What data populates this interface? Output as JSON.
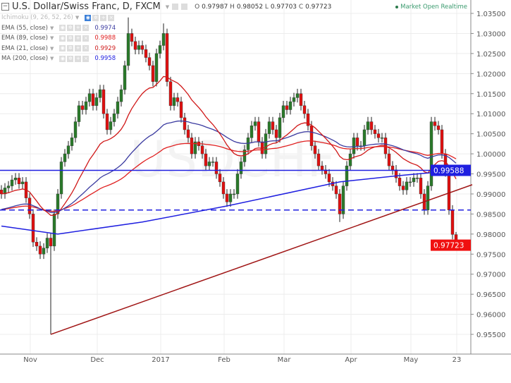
{
  "header": {
    "title": "U.S. Dollar/Swiss Franc, D, FXCM",
    "open_label": "O",
    "open": "0.97987",
    "high_label": "H",
    "high": "0.98052",
    "low_label": "L",
    "low": "0.97703",
    "close_label": "C",
    "close": "0.97723"
  },
  "status": {
    "market": "Market Open",
    "feed": "Realtime"
  },
  "indicators": [
    {
      "label": "Ichimoku (9, 26, 52, 26)",
      "value": "",
      "color": "#bbbbbb"
    },
    {
      "label": "EMA (55, close)",
      "value": "0.9974",
      "color": "#3b3ba0"
    },
    {
      "label": "EMA (89, close)",
      "value": "0.9988",
      "color": "#e02020"
    },
    {
      "label": "EMA (21, close)",
      "value": "0.9929",
      "color": "#d02020"
    },
    {
      "label": "MA (200, close)",
      "value": "0.9958",
      "color": "#1f1fe0"
    }
  ],
  "price_labels": {
    "horizontal_line": "0.99588",
    "last_price": "0.97723"
  },
  "colors": {
    "up": "#2a7a2a",
    "down": "#e01010",
    "hline": "#1f1fe0",
    "trend": "#a01515",
    "grid": "#ececec"
  },
  "chart_data": {
    "type": "candlestick",
    "symbol": "USDCHF",
    "ylim": [
      0.9535,
      1.0375
    ],
    "y_ticks": [
      "1.03500",
      "1.03000",
      "1.02500",
      "1.02000",
      "1.01500",
      "1.01000",
      "1.00500",
      "1.00000",
      "0.99500",
      "0.99000",
      "0.98500",
      "0.98000",
      "0.97500",
      "0.97000",
      "0.96500",
      "0.96000",
      "0.95500"
    ],
    "x_ticks": [
      {
        "label": "Nov",
        "index": 9
      },
      {
        "label": "Dec",
        "index": 28
      },
      {
        "label": "2017",
        "index": 46
      },
      {
        "label": "Feb",
        "index": 64
      },
      {
        "label": "Mar",
        "index": 81
      },
      {
        "label": "Apr",
        "index": 100
      },
      {
        "label": "May",
        "index": 117
      },
      {
        "label": "23",
        "index": 130
      }
    ],
    "close": [
      0.99,
      0.9915,
      0.992,
      0.9935,
      0.994,
      0.9925,
      0.993,
      0.989,
      0.985,
      0.978,
      0.977,
      0.975,
      0.9765,
      0.979,
      0.977,
      0.985,
      0.99,
      0.998,
      1.0,
      1.002,
      1.004,
      1.008,
      1.012,
      1.011,
      1.013,
      1.015,
      1.012,
      1.014,
      1.016,
      1.01,
      1.006,
      1.008,
      1.01,
      1.013,
      1.016,
      1.022,
      1.03,
      1.028,
      1.026,
      1.027,
      1.026,
      1.024,
      1.022,
      1.018,
      1.025,
      1.027,
      1.03,
      1.018,
      1.012,
      1.014,
      1.013,
      1.009,
      1.006,
      1.004,
      1.0,
      1.003,
      1.002,
      1.0,
      0.997,
      0.998,
      0.998,
      0.995,
      0.993,
      0.99,
      0.988,
      0.99,
      0.99,
      0.995,
      0.998,
      1.001,
      1.004,
      1.007,
      1.008,
      1.003,
      1.0,
      1.005,
      1.008,
      1.006,
      1.004,
      1.009,
      1.012,
      1.011,
      1.013,
      1.014,
      1.015,
      1.012,
      1.01,
      1.007,
      1.002,
      1.0,
      0.997,
      0.996,
      0.995,
      0.993,
      0.992,
      0.99,
      0.985,
      0.992,
      0.997,
      1.0,
      1.004,
      1.002,
      1.002,
      1.006,
      1.008,
      1.006,
      1.005,
      1.004,
      1.004,
      1.0,
      0.997,
      0.996,
      0.994,
      0.992,
      0.991,
      0.993,
      0.993,
      0.994,
      0.994,
      0.99,
      0.986,
      0.992,
      1.008,
      1.007,
      1.006,
      1.0,
      0.9955,
      0.986,
      0.9799,
      0.9772
    ],
    "last_candle": {
      "open": 0.97987,
      "high": 0.98052,
      "low": 0.97703,
      "close": 0.97723
    },
    "notable_wicks": [
      {
        "index": 14,
        "low": 0.955
      },
      {
        "index": 36,
        "high": 1.034
      },
      {
        "index": 46,
        "high": 1.0325
      },
      {
        "index": 96,
        "low": 0.983
      }
    ],
    "ma200": [
      [
        0,
        0.982
      ],
      [
        16,
        0.98
      ],
      [
        40,
        0.983
      ],
      [
        64,
        0.987
      ],
      [
        96,
        0.993
      ],
      [
        112,
        0.9945
      ],
      [
        129,
        0.99588
      ]
    ],
    "horizontal_lines": [
      {
        "price": 0.99588,
        "style": "solid"
      },
      {
        "price": 0.986,
        "style": "dashed"
      }
    ],
    "trend_line": [
      {
        "index": 14,
        "price": 0.955
      },
      {
        "index": 133.6,
        "price": 0.9923
      }
    ]
  }
}
